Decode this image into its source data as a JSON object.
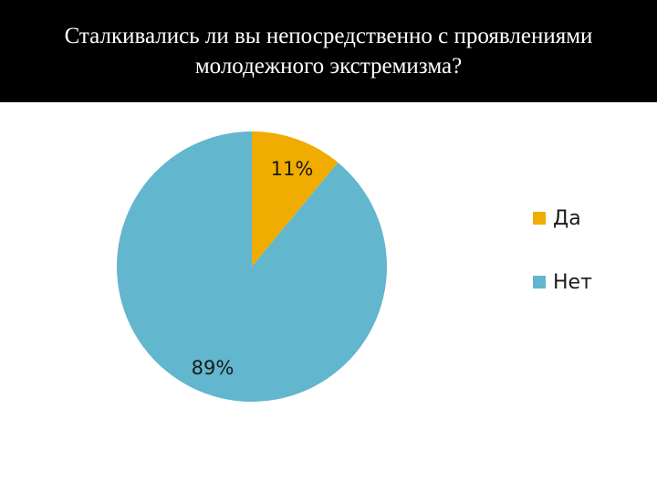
{
  "title": "Сталкивались ли вы непосредственно с проявлениями молодежного экстремизма?",
  "chart_data": {
    "type": "pie",
    "title": "Сталкивались ли вы непосредственно с проявлениями молодежного экстремизма?",
    "slices": [
      {
        "label": "Да",
        "value": 11,
        "display": "11%",
        "color": "#f0ac00"
      },
      {
        "label": "Нет",
        "value": 89,
        "display": "89%",
        "color": "#62b6cd"
      }
    ],
    "legend_position": "right"
  }
}
